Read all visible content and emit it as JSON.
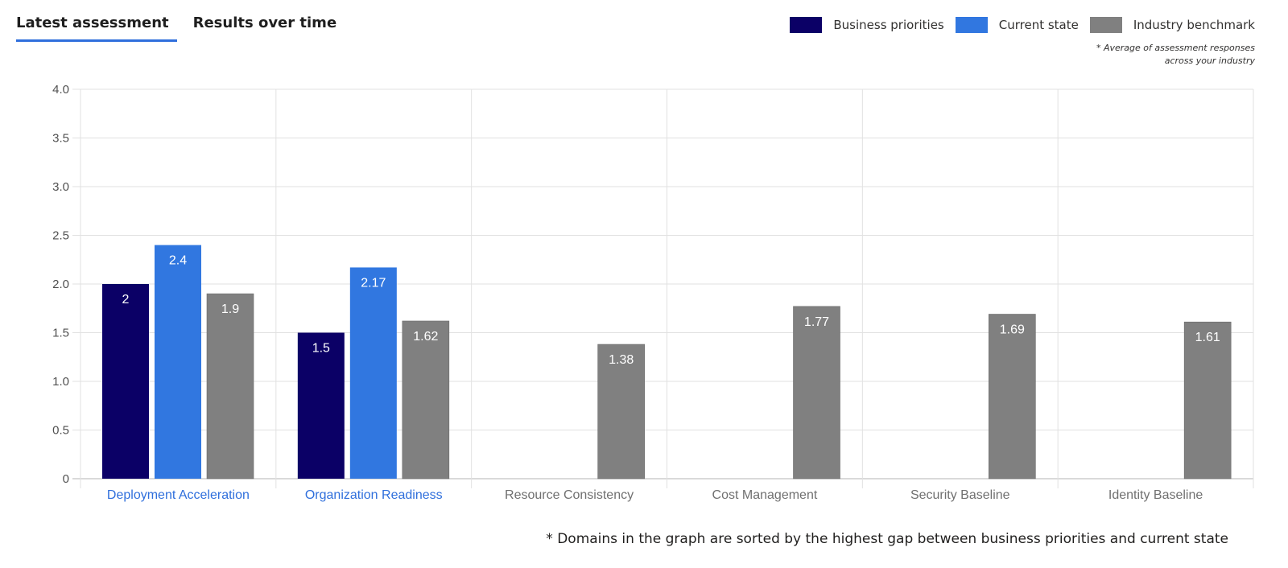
{
  "tabs": [
    {
      "label": "Latest assessment",
      "active": true
    },
    {
      "label": "Results over time",
      "active": false
    }
  ],
  "legend": {
    "items": [
      {
        "label": "Business priorities",
        "color": "#0b0066"
      },
      {
        "label": "Current state",
        "color": "#3177e0"
      },
      {
        "label": "Industry benchmark",
        "color": "#808080"
      }
    ],
    "note_line1": "* Average of assessment responses",
    "note_line2": "across your industry"
  },
  "footnote": "* Domains in the graph are sorted by the highest gap between business priorities and current state",
  "colors": {
    "business_priorities": "#0b0066",
    "current_state": "#3177e0",
    "industry_benchmark": "#808080",
    "link_label": "#2f6fdc",
    "muted_label": "#707070",
    "grid": "#e1e1e1",
    "tick_label": "#505050"
  },
  "chart_data": {
    "type": "bar",
    "categories": [
      "Deployment Acceleration",
      "Organization Readiness",
      "Resource Consistency",
      "Cost Management",
      "Security Baseline",
      "Identity Baseline"
    ],
    "category_links": [
      true,
      true,
      false,
      false,
      false,
      false
    ],
    "series": [
      {
        "name": "Business priorities",
        "values": [
          2,
          1.5,
          null,
          null,
          null,
          null
        ]
      },
      {
        "name": "Current state",
        "values": [
          2.4,
          2.17,
          null,
          null,
          null,
          null
        ]
      },
      {
        "name": "Industry benchmark",
        "values": [
          1.9,
          1.62,
          1.38,
          1.77,
          1.69,
          1.61
        ]
      }
    ],
    "y_ticks": [
      "0",
      "0.5",
      "1.0",
      "1.5",
      "2.0",
      "2.5",
      "3.0",
      "3.5",
      "4.0"
    ],
    "ylim": [
      0,
      4
    ],
    "grid": true,
    "legend_position": "top-right"
  }
}
